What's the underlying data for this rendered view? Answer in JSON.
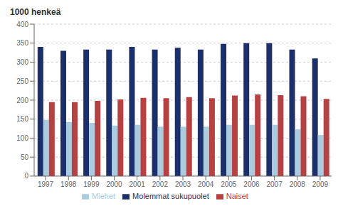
{
  "chart_data": {
    "type": "bar",
    "y_label": "1000 henkeä",
    "categories": [
      "1997",
      "1998",
      "1999",
      "2000",
      "2001",
      "2002",
      "2003",
      "2004",
      "2005",
      "2006",
      "2007",
      "2008",
      "2009"
    ],
    "series": [
      {
        "name": "Molemmat sukupuolet",
        "color": "#1c2f6b",
        "values": [
          340,
          330,
          333,
          333,
          340,
          333,
          338,
          333,
          348,
          350,
          350,
          333,
          310
        ]
      },
      {
        "name": "Miehet",
        "color": "#a8cce0",
        "values": [
          148,
          142,
          140,
          133,
          135,
          130,
          130,
          130,
          135,
          135,
          135,
          123,
          108
        ]
      },
      {
        "name": "Naiset",
        "color": "#b84040",
        "values": [
          195,
          195,
          198,
          202,
          206,
          205,
          208,
          205,
          212,
          215,
          213,
          210,
          203
        ]
      }
    ],
    "ylim": [
      0,
      400
    ],
    "yticks": [
      0,
      50,
      100,
      150,
      200,
      250,
      300,
      350,
      400
    ],
    "grid": true,
    "legend": "bottom"
  }
}
